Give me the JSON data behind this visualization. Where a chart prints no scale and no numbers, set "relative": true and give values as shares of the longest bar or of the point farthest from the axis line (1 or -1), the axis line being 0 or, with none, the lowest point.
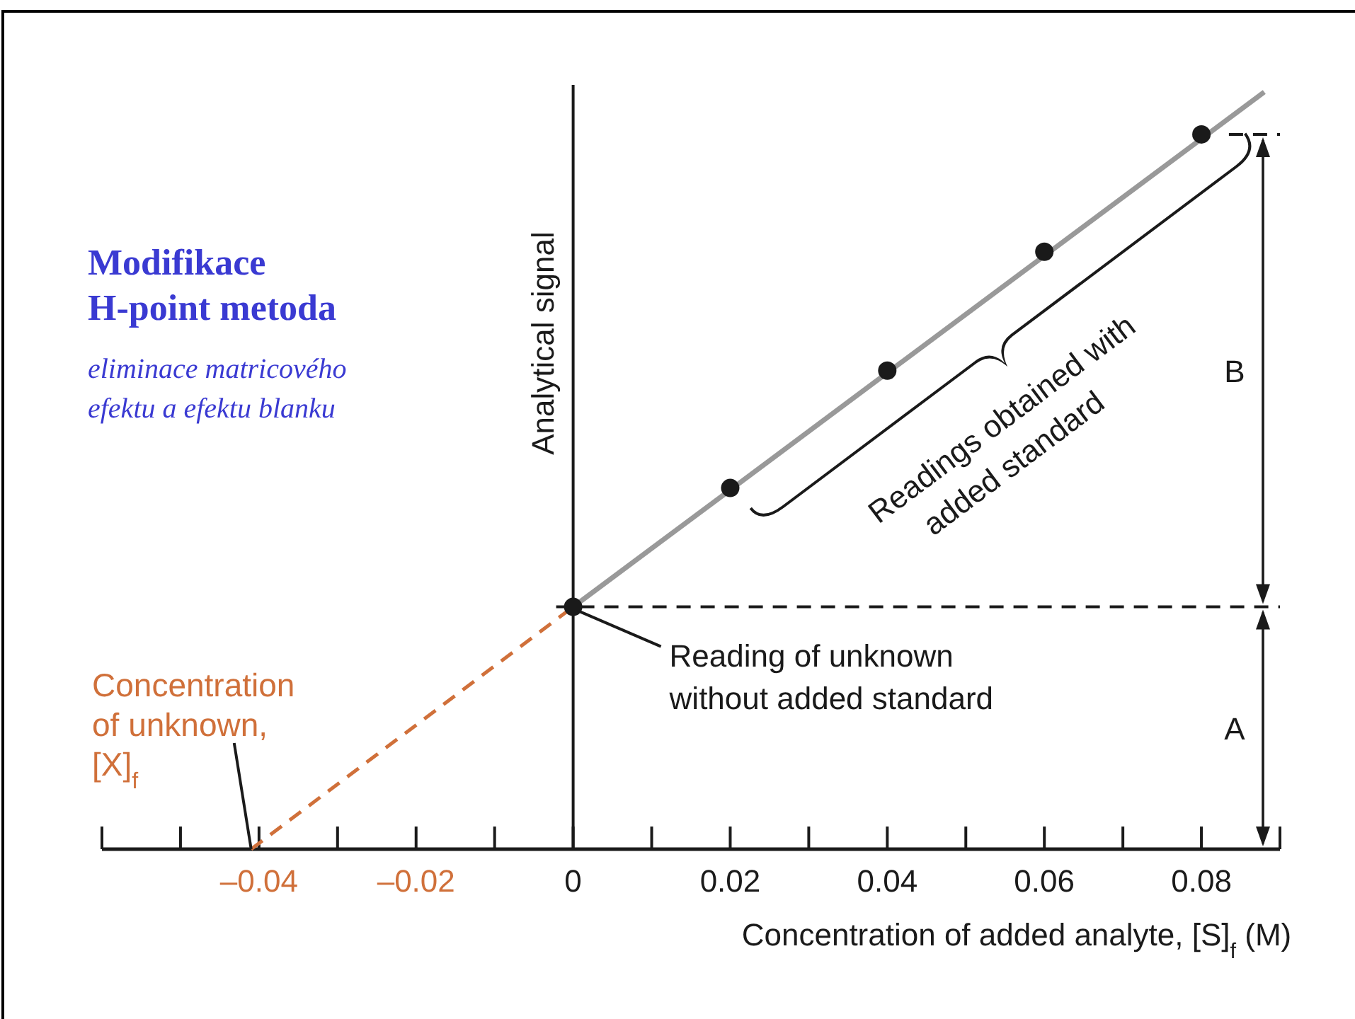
{
  "chart_data": {
    "type": "scatter",
    "title": "Modifikace H-point metoda",
    "subtitle": "eliminace matricového efektu a efektu blanku",
    "xlabel": "Concentration of added analyte, [S]$_{f}$ (M)",
    "ylabel": "Analytical signal",
    "relative": true,
    "tick_labels": "x",
    "xlim": [
      -0.06,
      0.09
    ],
    "xticks": [
      {
        "value": -0.06,
        "label": null
      },
      {
        "value": -0.05,
        "label": null
      },
      {
        "value": -0.04,
        "label": "–0.04"
      },
      {
        "value": -0.03,
        "label": null
      },
      {
        "value": -0.02,
        "label": "–0.02"
      },
      {
        "value": -0.01,
        "label": null
      },
      0,
      {
        "value": 0.01,
        "label": null
      },
      0.02,
      {
        "value": 0.03,
        "label": null
      },
      0.04,
      {
        "value": 0.05,
        "label": null
      },
      0.06,
      {
        "value": 0.07,
        "label": null
      },
      0.08,
      {
        "value": 0.09,
        "label": null
      }
    ],
    "series": [
      {
        "type": "line",
        "color": "#999999",
        "x": [
          0,
          0.088
        ],
        "values": [
          0.32,
          1
        ],
        "line_style": "solid",
        "marker": "none"
      },
      {
        "type": "line",
        "color": "#d0703a",
        "x": [
          -0.041,
          0
        ],
        "values": [
          0,
          0.32
        ],
        "line_style": "dashed",
        "marker": "none"
      },
      {
        "type": "line",
        "color": "#1a1a1a",
        "x": [
          0.0835,
          0.09
        ],
        "values": [
          0.944,
          0.944
        ],
        "line_style": "dashed",
        "marker": "none"
      },
      {
        "color": "#1a1a1a",
        "x": [
          0,
          0.02,
          0.04,
          0.06,
          0.08
        ],
        "values": [
          0.32,
          0.477,
          0.632,
          0.789,
          0.944
        ],
        "marker": "circle"
      }
    ],
    "ref_lines": [
      {
        "axis": "y",
        "value": 0.32,
        "line_style": "dashed",
        "color": "#1a1a1a"
      }
    ],
    "annotations": [
      {
        "text": "Concentration of unknown, [X]$_{f}$",
        "x": -0.041,
        "y": 0
      },
      {
        "text": "Reading of unknown without added standard",
        "x": 0,
        "y": 0.32
      },
      "Readings obtained with added standard",
      "A",
      "B"
    ]
  }
}
